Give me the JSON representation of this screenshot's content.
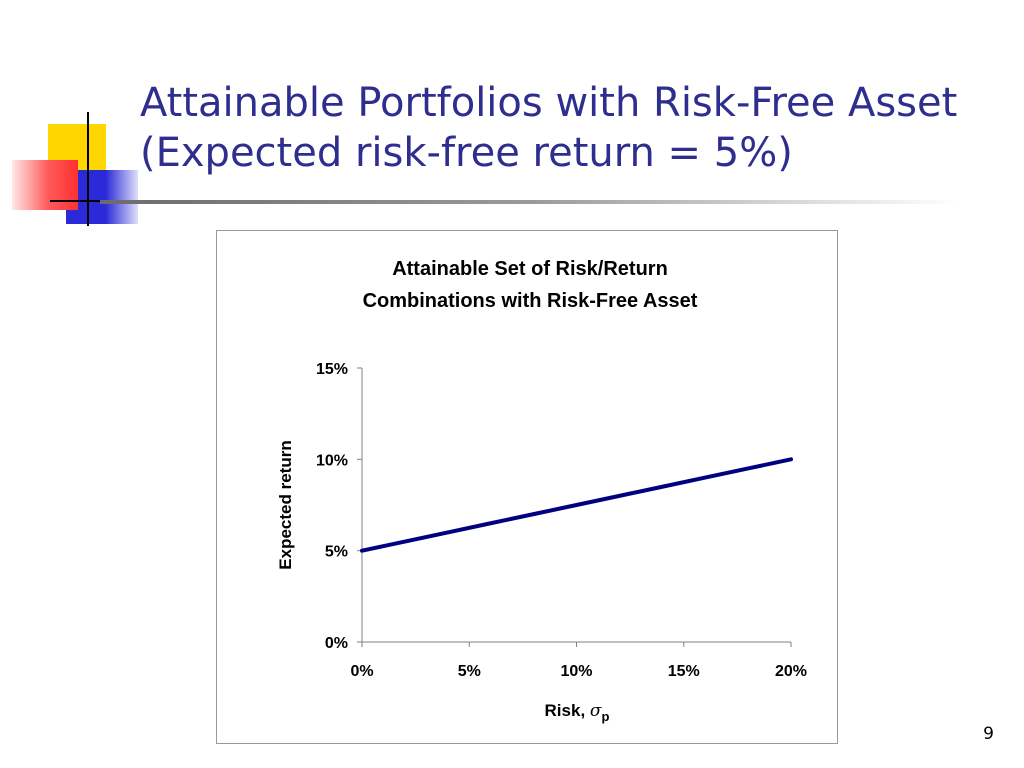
{
  "slide": {
    "title_line1": "Attainable Portfolios with Risk-Free Asset",
    "title_line2": "(Expected risk-free return = 5%)",
    "page_number": "9"
  },
  "colors": {
    "title": "#2e2e8f",
    "line": "#000080",
    "deco_yellow": "#ffd700",
    "deco_red": "#ff3b3b",
    "deco_blue": "#2a2ad8"
  },
  "chart_data": {
    "type": "line",
    "title_line1": "Attainable Set of Risk/Return",
    "title_line2": "Combinations with Risk-Free Asset",
    "xlabel": "Risk, ",
    "xlabel_symbol": "σ",
    "xlabel_subscript": "p",
    "ylabel": "Expected return",
    "x_ticks": [
      "0%",
      "5%",
      "10%",
      "15%",
      "20%"
    ],
    "y_ticks": [
      "0%",
      "5%",
      "10%",
      "15%"
    ],
    "xlim": [
      0,
      20
    ],
    "ylim": [
      0,
      15
    ],
    "grid": false,
    "series": [
      {
        "x": [
          0,
          2,
          4,
          6,
          8,
          10,
          12,
          14,
          16,
          18,
          20
        ],
        "y": [
          5,
          5.5,
          6,
          6.5,
          7,
          7.5,
          8,
          8.5,
          9,
          9.5,
          10
        ]
      }
    ]
  }
}
